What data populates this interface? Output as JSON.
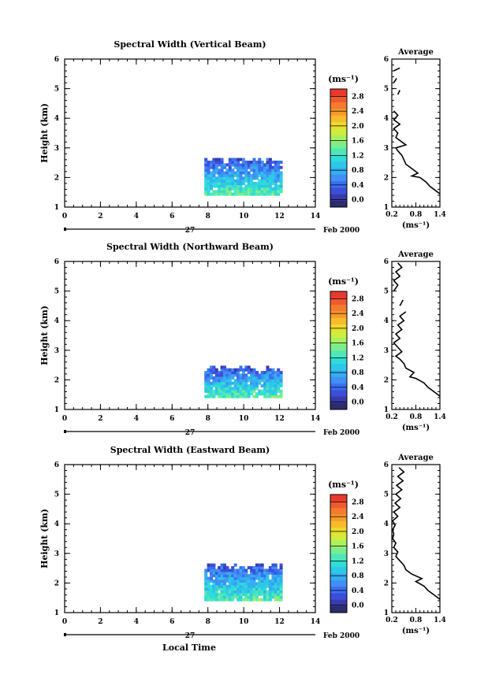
{
  "figure": {
    "xlabel_bottom": "Local Time",
    "date_label": "27",
    "month_label": "Feb 2000"
  },
  "colorbar": {
    "unit": "(ms⁻¹)",
    "tick_values": [
      "0.0",
      "0.4",
      "0.8",
      "1.2",
      "1.6",
      "2.0",
      "2.4",
      "2.8"
    ],
    "range": [
      -0.2,
      3.0
    ],
    "colors": [
      "#2c2c6e",
      "#3a3aa8",
      "#3a4ed8",
      "#3c6ff0",
      "#3f90f5",
      "#35aef0",
      "#2dc8e8",
      "#30dcd8",
      "#4ee8b8",
      "#7aee8c",
      "#a8f060",
      "#d0ec3c",
      "#ecdc2c",
      "#f8bc2a",
      "#f89a2a",
      "#f67a2e",
      "#f05a30",
      "#e83a2e"
    ]
  },
  "chart_data": [
    {
      "type": "heatmap",
      "title": "Spectral Width (Vertical Beam)",
      "ylabel": "Height (km)",
      "xlim": [
        0,
        14
      ],
      "ylim": [
        1,
        6
      ],
      "xticks": [
        0,
        2,
        4,
        6,
        8,
        10,
        12,
        14
      ],
      "yticks": [
        1,
        2,
        3,
        4,
        5,
        6
      ],
      "data_extent": {
        "x": [
          7.8,
          12.1
        ],
        "y": [
          1.4,
          2.6
        ]
      },
      "profile": {
        "title": "Average",
        "xlabel": "(ms⁻¹)",
        "xlim": [
          0.2,
          1.4
        ],
        "ylim": [
          1,
          6
        ],
        "xticks": [
          "0.2",
          "0.8",
          "1.4"
        ],
        "yticks": [
          1,
          2,
          3,
          4,
          5,
          6
        ],
        "segments": [
          [
            [
              1.4,
              1.45
            ],
            [
              1.3,
              1.55
            ],
            [
              1.15,
              1.7
            ],
            [
              1.05,
              1.85
            ],
            [
              0.9,
              2.0
            ],
            [
              0.7,
              2.05
            ],
            [
              0.85,
              2.15
            ],
            [
              0.7,
              2.3
            ],
            [
              0.55,
              2.45
            ],
            [
              0.5,
              2.6
            ],
            [
              0.45,
              2.75
            ],
            [
              0.35,
              2.9
            ],
            [
              0.3,
              3.0
            ],
            [
              0.55,
              3.1
            ],
            [
              0.45,
              3.2
            ],
            [
              0.3,
              3.35
            ],
            [
              0.35,
              3.5
            ],
            [
              0.25,
              3.65
            ],
            [
              0.4,
              3.8
            ],
            [
              0.25,
              3.95
            ],
            [
              0.35,
              4.1
            ],
            [
              0.25,
              4.25
            ]
          ],
          [
            [
              0.35,
              4.8
            ],
            [
              0.4,
              4.95
            ]
          ],
          [
            [
              0.25,
              5.2
            ],
            [
              0.32,
              5.35
            ]
          ],
          [
            [
              0.25,
              5.6
            ],
            [
              0.4,
              5.7
            ]
          ]
        ]
      }
    },
    {
      "type": "heatmap",
      "title": "Spectral Width (Northward Beam)",
      "ylabel": "Height (km)",
      "xlim": [
        0,
        14
      ],
      "ylim": [
        1,
        6
      ],
      "xticks": [
        0,
        2,
        4,
        6,
        8,
        10,
        12,
        14
      ],
      "yticks": [
        1,
        2,
        3,
        4,
        5,
        6
      ],
      "data_extent": {
        "x": [
          7.8,
          12.1
        ],
        "y": [
          1.4,
          2.4
        ]
      },
      "profile": {
        "title": "Average",
        "xlabel": "(ms⁻¹)",
        "xlim": [
          0.2,
          1.4
        ],
        "ylim": [
          1,
          6
        ],
        "xticks": [
          "0.2",
          "0.8",
          "1.4"
        ],
        "yticks": [
          1,
          2,
          3,
          4,
          5,
          6
        ],
        "segments": [
          [
            [
              1.4,
              1.45
            ],
            [
              1.25,
              1.6
            ],
            [
              1.1,
              1.75
            ],
            [
              1.0,
              1.9
            ],
            [
              0.8,
              2.05
            ],
            [
              0.65,
              2.1
            ],
            [
              0.75,
              2.25
            ],
            [
              0.55,
              2.4
            ],
            [
              0.5,
              2.55
            ],
            [
              0.4,
              2.7
            ],
            [
              0.3,
              2.8
            ],
            [
              0.45,
              2.95
            ],
            [
              0.35,
              3.1
            ],
            [
              0.25,
              3.25
            ],
            [
              0.4,
              3.4
            ],
            [
              0.3,
              3.55
            ],
            [
              0.45,
              3.7
            ],
            [
              0.35,
              3.85
            ],
            [
              0.5,
              4.0
            ],
            [
              0.4,
              4.15
            ],
            [
              0.55,
              4.3
            ]
          ],
          [
            [
              0.4,
              4.5
            ],
            [
              0.48,
              4.7
            ]
          ],
          [
            [
              0.25,
              5.0
            ],
            [
              0.35,
              5.2
            ],
            [
              0.25,
              5.35
            ],
            [
              0.4,
              5.5
            ],
            [
              0.3,
              5.65
            ],
            [
              0.45,
              5.8
            ],
            [
              0.35,
              5.95
            ]
          ]
        ]
      }
    },
    {
      "type": "heatmap",
      "title": "Spectral Width (Eastward Beam)",
      "ylabel": "Height (km)",
      "xlim": [
        0,
        14
      ],
      "ylim": [
        1,
        6
      ],
      "xticks": [
        0,
        2,
        4,
        6,
        8,
        10,
        12,
        14
      ],
      "yticks": [
        1,
        2,
        3,
        4,
        5,
        6
      ],
      "data_extent": {
        "x": [
          7.8,
          12.1
        ],
        "y": [
          1.4,
          2.6
        ]
      },
      "profile": {
        "title": "Average",
        "xlabel": "(ms⁻¹)",
        "xlim": [
          0.2,
          1.4
        ],
        "ylim": [
          1,
          6
        ],
        "xticks": [
          "0.2",
          "0.8",
          "1.4"
        ],
        "yticks": [
          1,
          2,
          3,
          4,
          5,
          6
        ],
        "segments": [
          [
            [
              1.4,
              1.45
            ],
            [
              1.25,
              1.6
            ],
            [
              1.1,
              1.75
            ],
            [
              1.0,
              1.9
            ],
            [
              0.8,
              2.05
            ],
            [
              0.95,
              2.15
            ],
            [
              0.7,
              2.3
            ],
            [
              0.55,
              2.45
            ],
            [
              0.5,
              2.6
            ],
            [
              0.4,
              2.75
            ],
            [
              0.3,
              2.9
            ],
            [
              0.35,
              3.05
            ],
            [
              0.25,
              3.2
            ],
            [
              0.3,
              3.35
            ],
            [
              0.22,
              3.5
            ],
            [
              0.25,
              3.65
            ],
            [
              0.22,
              3.8
            ],
            [
              0.28,
              3.95
            ],
            [
              0.22,
              4.1
            ],
            [
              0.35,
              4.25
            ],
            [
              0.25,
              4.4
            ],
            [
              0.4,
              4.55
            ],
            [
              0.28,
              4.7
            ],
            [
              0.42,
              4.85
            ],
            [
              0.3,
              5.0
            ],
            [
              0.45,
              5.15
            ],
            [
              0.32,
              5.3
            ],
            [
              0.48,
              5.45
            ],
            [
              0.35,
              5.6
            ],
            [
              0.5,
              5.75
            ],
            [
              0.38,
              5.9
            ]
          ]
        ]
      }
    }
  ]
}
